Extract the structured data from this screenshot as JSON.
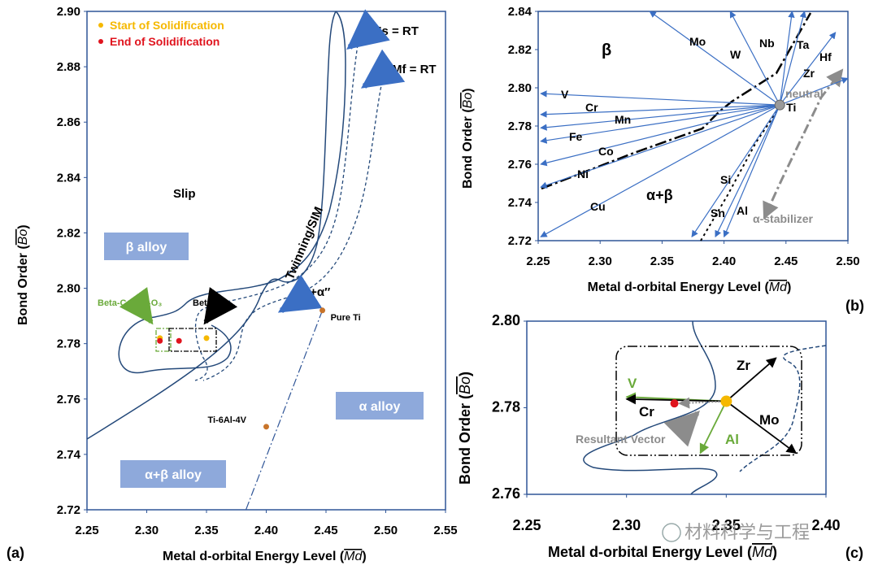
{
  "figure_labels": {
    "a": "(a)",
    "b": "(b)",
    "c": "(c)"
  },
  "colors": {
    "curve": "#24497a",
    "arrow_blue": "#3b6fc4",
    "box_fill": "#8ea9db",
    "orange": "#f5b800",
    "red": "#e0141e",
    "green": "#6aaa3a",
    "brown": "#c8742a",
    "gray": "#8c8c8c"
  },
  "watermark": "材料科学与工程",
  "chart_data": [
    {
      "id": "a",
      "type": "scatter",
      "title": "",
      "xlabel": "Metal d-orbital Energy Level (",
      "xlabel_sym": "Md",
      "ylabel": "Bond Order (",
      "ylabel_sym": "Bo",
      "xlim": [
        2.25,
        2.55
      ],
      "ylim": [
        2.72,
        2.9
      ],
      "xticks": [
        "2.25",
        "2.30",
        "2.35",
        "2.40",
        "2.45",
        "2.50",
        "2.55"
      ],
      "yticks": [
        "2.72",
        "2.74",
        "2.76",
        "2.78",
        "2.80",
        "2.82",
        "2.84",
        "2.86",
        "2.88",
        "2.90"
      ],
      "legend": [
        {
          "label": "Start of Solidification",
          "color": "#f5b800"
        },
        {
          "label": "End of Solidification",
          "color": "#e0141e"
        }
      ],
      "region_labels": [
        "β alloy",
        "α alloy",
        "α+β alloy"
      ],
      "text_labels": {
        "slip": "Slip",
        "twinning": "Twinning/SIM",
        "beta_alpha": "β+α″",
        "ms": "Ms = RT",
        "mf": "Mf = RT",
        "betac": "Beta-C",
        "betac_la": "Beta-C + La₂O₃"
      },
      "points": [
        {
          "label": "Pure Ti",
          "x": 2.447,
          "y": 2.792,
          "color": "#c8742a"
        },
        {
          "label": "Ti-6Al-4V",
          "x": 2.4,
          "y": 2.75,
          "color": "#c8742a"
        },
        {
          "label": "",
          "x": 2.35,
          "y": 2.782,
          "color": "#f5b800"
        },
        {
          "label": "",
          "x": 2.327,
          "y": 2.781,
          "color": "#e0141e"
        },
        {
          "label": "",
          "x": 2.311,
          "y": 2.782,
          "color": "#f5b800"
        },
        {
          "label": "",
          "x": 2.311,
          "y": 2.781,
          "color": "#e0141e"
        }
      ]
    },
    {
      "id": "b",
      "type": "vector",
      "xlabel": "Metal d-orbital Energy Level (",
      "xlabel_sym": "Md",
      "ylabel": "Bond Order (",
      "ylabel_sym": "Bo",
      "xlim": [
        2.25,
        2.5
      ],
      "ylim": [
        2.72,
        2.84
      ],
      "xticks": [
        "2.25",
        "2.30",
        "2.35",
        "2.40",
        "2.45",
        "2.50"
      ],
      "yticks": [
        "2.72",
        "2.74",
        "2.76",
        "2.78",
        "2.80",
        "2.82",
        "2.84"
      ],
      "origin": {
        "label": "Ti",
        "x": 2.445,
        "y": 2.791
      },
      "region_labels": {
        "beta": "β",
        "alpha_beta": "α+β"
      },
      "neutral_label": "neutral",
      "stabilizer_label": "α-stabilizer",
      "vectors": [
        {
          "label": "V",
          "x": 2.252,
          "y": 2.797
        },
        {
          "label": "Cr",
          "x": 2.252,
          "y": 2.786
        },
        {
          "label": "Mn",
          "x": 2.252,
          "y": 2.779
        },
        {
          "label": "Fe",
          "x": 2.252,
          "y": 2.772
        },
        {
          "label": "Co",
          "x": 2.252,
          "y": 2.76
        },
        {
          "label": "Ni",
          "x": 2.252,
          "y": 2.748
        },
        {
          "label": "Cu",
          "x": 2.252,
          "y": 2.722
        },
        {
          "label": "Mo",
          "x": 2.34,
          "y": 2.84
        },
        {
          "label": "W",
          "x": 2.405,
          "y": 2.84
        },
        {
          "label": "Nb",
          "x": 2.455,
          "y": 2.84
        },
        {
          "label": "Ta",
          "x": 2.465,
          "y": 2.84
        },
        {
          "label": "Hf",
          "x": 2.49,
          "y": 2.829
        },
        {
          "label": "Zr",
          "x": 2.5,
          "y": 2.805
        },
        {
          "label": "Si",
          "x": 2.374,
          "y": 2.722
        },
        {
          "label": "Sn",
          "x": 2.393,
          "y": 2.722
        },
        {
          "label": "Al",
          "x": 2.4,
          "y": 2.722
        }
      ]
    },
    {
      "id": "c",
      "type": "vector",
      "xlabel": "Metal d-orbital Energy Level (",
      "xlabel_sym": "Md",
      "ylabel": "Bond Order (",
      "ylabel_sym": "Bo",
      "xlim": [
        2.25,
        2.4
      ],
      "ylim": [
        2.76,
        2.8
      ],
      "xticks": [
        "2.25",
        "2.30",
        "2.35",
        "2.40"
      ],
      "xtick_third": "2.35",
      "yticks": [
        "2.76",
        "2.78",
        "2.80"
      ],
      "origin": {
        "x": 2.35,
        "y": 2.7815
      },
      "red_point": {
        "x": 2.324,
        "y": 2.781
      },
      "vectors": [
        {
          "label": "V",
          "x": 2.3,
          "y": 2.7825,
          "color": "#6aaa3a"
        },
        {
          "label": "Cr",
          "x": 2.3,
          "y": 2.782,
          "color": "#000000"
        },
        {
          "label": "Zr",
          "x": 2.375,
          "y": 2.7915,
          "color": "#000000"
        },
        {
          "label": "Mo",
          "x": 2.385,
          "y": 2.7695,
          "color": "#000000"
        },
        {
          "label": "Al",
          "x": 2.337,
          "y": 2.7695,
          "color": "#6aaa3a"
        }
      ],
      "resultant_label": "Resultant Vector"
    }
  ]
}
